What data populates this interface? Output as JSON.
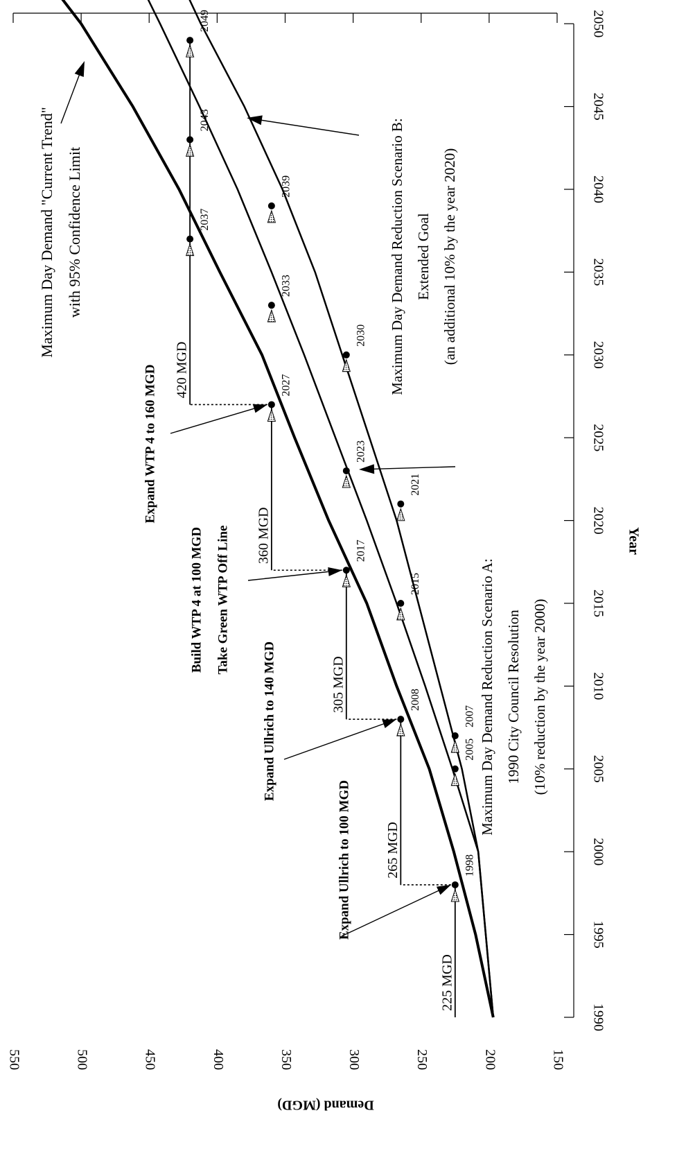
{
  "chart_data": {
    "type": "line",
    "title": "",
    "xlabel": "Year",
    "ylabel": "Demand (MGD)",
    "xlim": [
      1990,
      2050
    ],
    "ylim": [
      150,
      550
    ],
    "x_ticks": [
      1990,
      1995,
      2000,
      2005,
      2010,
      2015,
      2020,
      2025,
      2030,
      2035,
      2040,
      2045,
      2050
    ],
    "y_ticks": [
      150,
      200,
      250,
      300,
      350,
      400,
      450,
      500,
      550
    ],
    "grid": false,
    "series": [
      {
        "id": "trend",
        "label_lines": [
          "Maximum Day Demand \"Current Trend\"",
          "with 95% Confidence Limit"
        ],
        "points": [
          [
            1990,
            197
          ],
          [
            1995,
            210
          ],
          [
            2000,
            226
          ],
          [
            2005,
            244
          ],
          [
            2010,
            268
          ],
          [
            2015,
            290
          ],
          [
            2020,
            318
          ],
          [
            2025,
            343
          ],
          [
            2030,
            367
          ],
          [
            2035,
            398
          ],
          [
            2040,
            428
          ],
          [
            2045,
            462
          ],
          [
            2050,
            500
          ],
          [
            2053,
            528
          ]
        ]
      },
      {
        "id": "scenario-a",
        "label_lines": [
          "Maximum Day Demand Reduction Scenario A:",
          "1990 City Council Resolution",
          "(10% reduction by the year 2000)"
        ],
        "points": [
          [
            1990,
            197
          ],
          [
            2000,
            208
          ],
          [
            2005,
            227
          ],
          [
            2010,
            247
          ],
          [
            2015,
            268
          ],
          [
            2020,
            290
          ],
          [
            2025,
            313
          ],
          [
            2030,
            336
          ],
          [
            2035,
            360
          ],
          [
            2040,
            385
          ],
          [
            2045,
            413
          ],
          [
            2050,
            442
          ],
          [
            2056,
            478
          ]
        ]
      },
      {
        "id": "scenario-b",
        "label_lines": [
          "Maximum Day Demand Reduction Scenario B:",
          "Extended Goal",
          "(an additional 10% by the year 2020)"
        ],
        "points": [
          [
            1990,
            197
          ],
          [
            2000,
            208
          ],
          [
            2005,
            220
          ],
          [
            2010,
            236
          ],
          [
            2015,
            252
          ],
          [
            2020,
            268
          ],
          [
            2025,
            288
          ],
          [
            2030,
            308
          ],
          [
            2035,
            328
          ],
          [
            2040,
            352
          ],
          [
            2045,
            380
          ],
          [
            2050,
            412
          ],
          [
            2057,
            452
          ]
        ]
      }
    ],
    "capacity_steps": [
      {
        "label": "225 MGD",
        "value": 225,
        "start": 1990,
        "end": 1998
      },
      {
        "label": "265 MGD",
        "value": 265,
        "start": 1998,
        "end": 2008
      },
      {
        "label": "305 MGD",
        "value": 305,
        "start": 2008,
        "end": 2017
      },
      {
        "label": "360 MGD",
        "value": 360,
        "start": 2017,
        "end": 2027
      },
      {
        "label": "420 MGD",
        "value": 420,
        "start": 2027,
        "end": 2049
      }
    ],
    "year_markers": [
      {
        "label": "1998",
        "year": 1998,
        "value": 225
      },
      {
        "label": "2005",
        "year": 2005,
        "value": 225
      },
      {
        "label": "2007",
        "year": 2007,
        "value": 225
      },
      {
        "label": "2008",
        "year": 2008,
        "value": 265
      },
      {
        "label": "2015",
        "year": 2015,
        "value": 265
      },
      {
        "label": "2021",
        "year": 2021,
        "value": 265
      },
      {
        "label": "2017",
        "year": 2017,
        "value": 305
      },
      {
        "label": "2023",
        "year": 2023,
        "value": 305
      },
      {
        "label": "2030",
        "year": 2030,
        "value": 305
      },
      {
        "label": "2027",
        "year": 2027,
        "value": 360
      },
      {
        "label": "2033",
        "year": 2033,
        "value": 360
      },
      {
        "label": "2039",
        "year": 2039,
        "value": 360
      },
      {
        "label": "2037",
        "year": 2037,
        "value": 420
      },
      {
        "label": "2043",
        "year": 2043,
        "value": 420
      },
      {
        "label": "2049",
        "year": 2049,
        "value": 420
      }
    ],
    "actions": [
      {
        "label_lines": [
          "Expand Ullrich to 100 MGD"
        ],
        "target_year": 1998,
        "target_value": 225
      },
      {
        "label_lines": [
          "Expand Ullrich to 140 MGD"
        ],
        "target_year": 2008,
        "target_value": 265
      },
      {
        "label_lines": [
          "Build WTP 4 at 100 MGD",
          "Take Green WTP Off Line"
        ],
        "target_year": 2017,
        "target_value": 305
      },
      {
        "label_lines": [
          "Expand WTP 4 to 160 MGD"
        ],
        "target_year": 2027,
        "target_value": 360
      }
    ]
  }
}
